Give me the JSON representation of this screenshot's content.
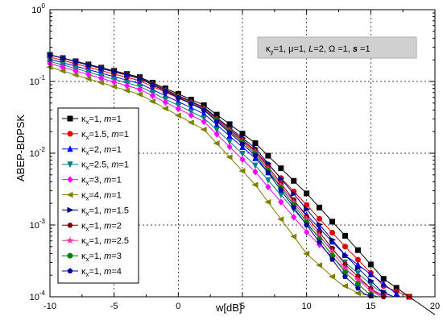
{
  "chart_data": {
    "type": "line",
    "xlabel": "w[dB]",
    "ylabel": "ABEP-BDPSK",
    "xlim": [
      -10,
      20
    ],
    "ylim": [
      0.0001,
      1
    ],
    "yscale": "log",
    "grid": true,
    "legend_position": "left",
    "x_ticks": [
      "-10",
      "-5",
      "0",
      "5",
      "10",
      "15",
      "20"
    ],
    "y_ticks": [
      {
        "base": "10",
        "exp": "0"
      },
      {
        "base": "10",
        "exp": "-1"
      },
      {
        "base": "10",
        "exp": "-2"
      },
      {
        "base": "10",
        "exp": "-3"
      },
      {
        "base": "10",
        "exp": "-4"
      }
    ],
    "annotation": {
      "kappa_y": "κ",
      "kappa_y_sub": "y",
      "kappa_y_val": "=1, ",
      "mu": "μ=1, ",
      "L": "L",
      "L_val": "=2, ",
      "omega": "Ω =1, ",
      "s": "s",
      "s_val": " =1"
    },
    "x": [
      -10,
      -9,
      -8,
      -7,
      -6,
      -5,
      -4,
      -3,
      -2,
      -1,
      0,
      1,
      2,
      3,
      4,
      5,
      6,
      7,
      8,
      9,
      10,
      11,
      12,
      13,
      14,
      15,
      16,
      17,
      18,
      19,
      20
    ],
    "series": [
      {
        "name": "κx=1, m=1",
        "kx": "1",
        "m": "1",
        "color": "#000000",
        "marker": "square",
        "log_points": [
          [
            -10,
            -0.63
          ],
          [
            20,
            -4.25
          ],
          [
            -3,
            -0.94
          ],
          [
            2,
            -1.33
          ],
          [
            6,
            -1.86
          ],
          [
            10,
            -2.56
          ],
          [
            13,
            -3.15
          ],
          [
            16,
            -3.75
          ]
        ]
      },
      {
        "name": "κx=1.5, m=1",
        "kx": "1.5",
        "m": "1",
        "color": "#e00000",
        "marker": "circle",
        "log_points": [
          [
            -10,
            -0.66
          ],
          [
            18,
            -4.0
          ],
          [
            -3,
            -0.99
          ],
          [
            2,
            -1.39
          ],
          [
            6,
            -1.97
          ],
          [
            10,
            -2.72
          ],
          [
            13,
            -3.3
          ],
          [
            16,
            -3.85
          ]
        ]
      },
      {
        "name": "κx=2, m=1",
        "kx": "2",
        "m": "1",
        "color": "#0000ff",
        "marker": "triangle-up",
        "log_points": [
          [
            -10,
            -0.69
          ],
          [
            17.3,
            -4.0
          ],
          [
            -3,
            -1.03
          ],
          [
            2,
            -1.45
          ],
          [
            6,
            -2.07
          ],
          [
            10,
            -2.86
          ],
          [
            13,
            -3.42
          ],
          [
            16,
            -3.82
          ]
        ]
      },
      {
        "name": "κx=2.5, m=1",
        "kx": "2.5",
        "m": "1",
        "color": "#008080",
        "marker": "triangle-down",
        "log_points": [
          [
            -10,
            -0.72
          ],
          [
            16.7,
            -4.0
          ],
          [
            -3,
            -1.07
          ],
          [
            2,
            -1.51
          ],
          [
            6,
            -2.17
          ],
          [
            10,
            -2.99
          ],
          [
            13,
            -3.52
          ],
          [
            15.5,
            -3.9
          ]
        ]
      },
      {
        "name": "κx=3, m=1",
        "kx": "3",
        "m": "1",
        "color": "#ff00ff",
        "marker": "diamond",
        "log_points": [
          [
            -10,
            -0.75
          ],
          [
            16.3,
            -4.0
          ],
          [
            -3,
            -1.11
          ],
          [
            2,
            -1.56
          ],
          [
            6,
            -2.26
          ],
          [
            10,
            -3.1
          ],
          [
            13,
            -3.62
          ],
          [
            15.3,
            -3.92
          ]
        ]
      },
      {
        "name": "κx=4, m=1",
        "kx": "4",
        "m": "1",
        "color": "#808000",
        "marker": "triangle-left",
        "log_points": [
          [
            -10,
            -0.8
          ],
          [
            15.3,
            -4.0
          ],
          [
            -3,
            -1.18
          ],
          [
            2,
            -1.67
          ],
          [
            6,
            -2.44
          ],
          [
            10,
            -3.4
          ],
          [
            12.5,
            -3.8
          ],
          [
            14,
            -3.95
          ]
        ]
      },
      {
        "name": "κx=1, m=1.5",
        "kx": "1",
        "m": "1.5",
        "color": "#000080",
        "marker": "triangle-right",
        "log_points": [
          [
            -10,
            -0.63
          ],
          [
            16.8,
            -4.0
          ],
          [
            -3,
            -0.95
          ],
          [
            2,
            -1.36
          ],
          [
            6,
            -1.93
          ],
          [
            10,
            -2.78
          ],
          [
            13,
            -3.42
          ],
          [
            15.8,
            -3.92
          ]
        ]
      },
      {
        "name": "κx=1, m=2",
        "kx": "1",
        "m": "2",
        "color": "#800000",
        "marker": "hexagon",
        "log_points": [
          [
            -10,
            -0.63
          ],
          [
            16.0,
            -4.0
          ],
          [
            -3,
            -0.95
          ],
          [
            2,
            -1.37
          ],
          [
            6,
            -1.96
          ],
          [
            10,
            -2.88
          ],
          [
            13,
            -3.55
          ],
          [
            15.2,
            -3.92
          ]
        ]
      },
      {
        "name": "κx=1, m=2.5",
        "kx": "1",
        "m": "2.5",
        "color": "#ff3399",
        "marker": "star",
        "log_points": [
          [
            -10,
            -0.63
          ],
          [
            15.8,
            -4.0
          ],
          [
            -3,
            -0.96
          ],
          [
            2,
            -1.38
          ],
          [
            6,
            -1.98
          ],
          [
            10,
            -2.92
          ],
          [
            13,
            -3.6
          ],
          [
            15.0,
            -3.92
          ]
        ]
      },
      {
        "name": "κx=1, m=3",
        "kx": "1",
        "m": "3",
        "color": "#008000",
        "marker": "circle",
        "log_points": [
          [
            -10,
            -0.63
          ],
          [
            15.5,
            -4.0
          ],
          [
            -3,
            -0.96
          ],
          [
            2,
            -1.39
          ],
          [
            6,
            -2.0
          ],
          [
            10,
            -2.96
          ],
          [
            13,
            -3.66
          ],
          [
            14.8,
            -3.95
          ]
        ]
      },
      {
        "name": "κx=1, m=4",
        "kx": "1",
        "m": "4",
        "color": "#000099",
        "marker": "pentagon",
        "log_points": [
          [
            -10,
            -0.63
          ],
          [
            15.2,
            -4.0
          ],
          [
            -3,
            -0.96
          ],
          [
            2,
            -1.4
          ],
          [
            6,
            -2.03
          ],
          [
            10,
            -3.0
          ],
          [
            13,
            -3.72
          ],
          [
            14.5,
            -3.96
          ]
        ]
      }
    ]
  }
}
